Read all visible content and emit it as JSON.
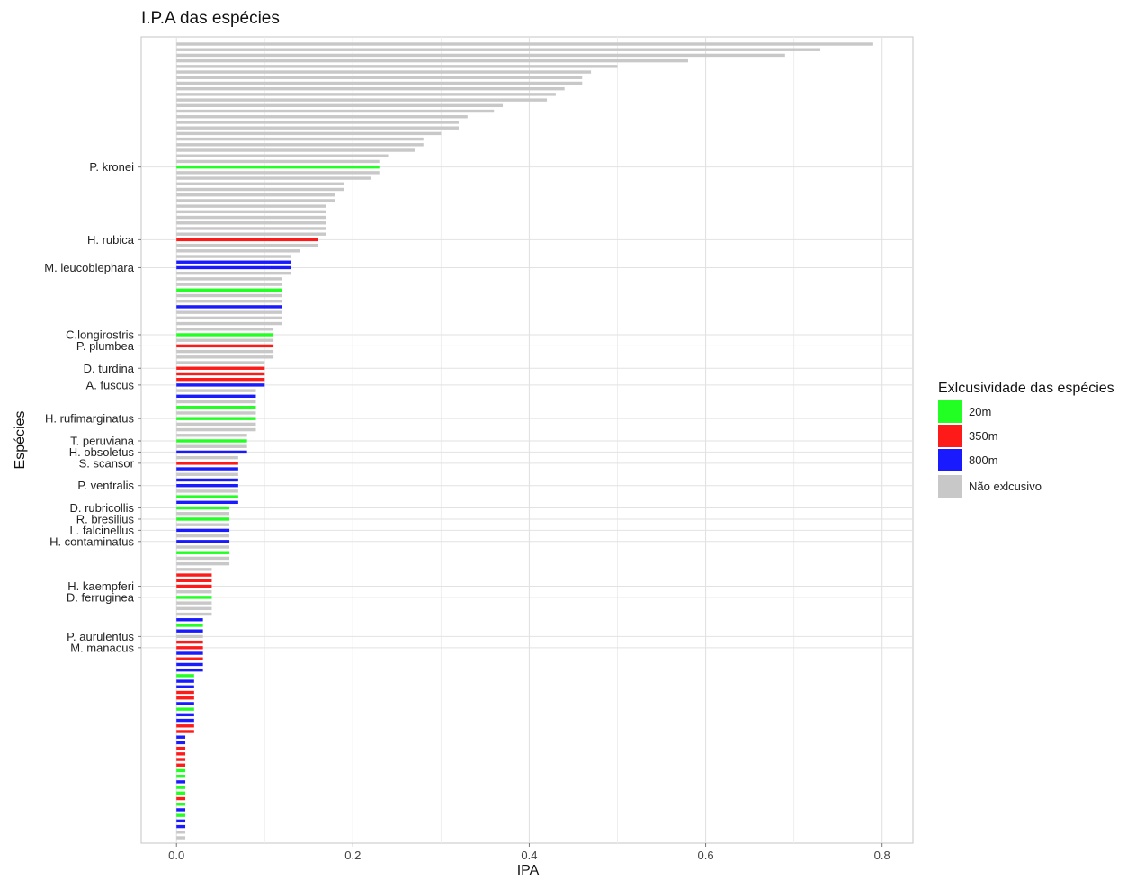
{
  "chart_data": {
    "type": "bar",
    "orientation": "horizontal",
    "title": "I.P.A das espécies",
    "xlabel": "IPA",
    "ylabel": "Espécies",
    "xlim": [
      -0.04,
      0.835
    ],
    "xticks": [
      0.0,
      0.2,
      0.4,
      0.6,
      0.8
    ],
    "xtick_labels": [
      "0.0",
      "0.2",
      "0.4",
      "0.6",
      "0.8"
    ],
    "grid": true,
    "legend": {
      "title": "Exlcusividade das espécies",
      "position": "right",
      "items": [
        {
          "key": "20m",
          "label": "20m",
          "color": "#22ff22"
        },
        {
          "key": "350m",
          "label": "350m",
          "color": "#ff1a1a"
        },
        {
          "key": "800m",
          "label": "800m",
          "color": "#1a1aff"
        },
        {
          "key": "nao",
          "label": "Não exlcusivo",
          "color": "#c8c8c8"
        }
      ]
    },
    "categories_ordered": "top-to-bottom, descending IPA",
    "values": [
      0.79,
      0.73,
      0.69,
      0.58,
      0.5,
      0.47,
      0.46,
      0.46,
      0.44,
      0.43,
      0.42,
      0.37,
      0.36,
      0.33,
      0.32,
      0.32,
      0.3,
      0.28,
      0.28,
      0.27,
      0.24,
      0.23,
      0.23,
      0.23,
      0.22,
      0.19,
      0.19,
      0.18,
      0.18,
      0.17,
      0.17,
      0.17,
      0.17,
      0.17,
      0.17,
      0.16,
      0.16,
      0.14,
      0.13,
      0.13,
      0.13,
      0.13,
      0.12,
      0.12,
      0.12,
      0.12,
      0.12,
      0.12,
      0.12,
      0.12,
      0.12,
      0.11,
      0.11,
      0.11,
      0.11,
      0.11,
      0.11,
      0.1,
      0.1,
      0.1,
      0.1,
      0.1,
      0.09,
      0.09,
      0.09,
      0.09,
      0.09,
      0.09,
      0.09,
      0.09,
      0.08,
      0.08,
      0.08,
      0.08,
      0.07,
      0.07,
      0.07,
      0.07,
      0.07,
      0.07,
      0.07,
      0.07,
      0.07,
      0.06,
      0.06,
      0.06,
      0.06,
      0.06,
      0.06,
      0.06,
      0.06,
      0.06,
      0.06,
      0.06,
      0.04,
      0.04,
      0.04,
      0.04,
      0.04,
      0.04,
      0.04,
      0.04,
      0.04,
      0.03,
      0.03,
      0.03,
      0.03,
      0.03,
      0.03,
      0.03,
      0.03,
      0.03,
      0.03,
      0.02,
      0.02,
      0.02,
      0.02,
      0.02,
      0.02,
      0.02,
      0.02,
      0.02,
      0.02,
      0.02,
      0.01,
      0.01,
      0.01,
      0.01,
      0.01,
      0.01,
      0.01,
      0.01,
      0.01,
      0.01,
      0.01,
      0.01,
      0.01,
      0.01,
      0.01,
      0.01,
      0.01,
      0.01,
      0.01
    ],
    "groups": [
      "nao",
      "nao",
      "nao",
      "nao",
      "nao",
      "nao",
      "nao",
      "nao",
      "nao",
      "nao",
      "nao",
      "nao",
      "nao",
      "nao",
      "nao",
      "nao",
      "nao",
      "nao",
      "nao",
      "nao",
      "nao",
      "nao",
      "20m",
      "nao",
      "nao",
      "nao",
      "nao",
      "nao",
      "nao",
      "nao",
      "nao",
      "nao",
      "nao",
      "nao",
      "nao",
      "350m",
      "nao",
      "nao",
      "nao",
      "800m",
      "800m",
      "nao",
      "nao",
      "nao",
      "20m",
      "nao",
      "nao",
      "800m",
      "nao",
      "nao",
      "nao",
      "nao",
      "20m",
      "nao",
      "350m",
      "nao",
      "nao",
      "nao",
      "350m",
      "350m",
      "350m",
      "800m",
      "nao",
      "800m",
      "nao",
      "20m",
      "nao",
      "20m",
      "nao",
      "nao",
      "nao",
      "20m",
      "nao",
      "800m",
      "nao",
      "350m",
      "800m",
      "nao",
      "800m",
      "800m",
      "nao",
      "20m",
      "800m",
      "20m",
      "nao",
      "20m",
      "nao",
      "800m",
      "nao",
      "800m",
      "nao",
      "20m",
      "nao",
      "nao",
      "nao",
      "350m",
      "350m",
      "350m",
      "nao",
      "20m",
      "nao",
      "nao",
      "nao",
      "800m",
      "20m",
      "800m",
      "nao",
      "350m",
      "350m",
      "800m",
      "350m",
      "800m",
      "800m",
      "20m",
      "800m",
      "800m",
      "350m",
      "350m",
      "800m",
      "20m",
      "800m",
      "800m",
      "350m",
      "350m",
      "800m",
      "800m",
      "350m",
      "350m",
      "350m",
      "350m",
      "20m",
      "20m",
      "800m",
      "20m",
      "20m",
      "350m",
      "20m",
      "800m",
      "20m",
      "800m",
      "800m"
    ],
    "labeled_species": [
      {
        "name": "P. kronei",
        "index": 22
      },
      {
        "name": "H. rubica",
        "index": 35
      },
      {
        "name": "M. leucoblephara",
        "index": 40
      },
      {
        "name": "C.longirostris",
        "index": 52
      },
      {
        "name": "P. plumbea",
        "index": 54
      },
      {
        "name": "D. turdina",
        "index": 58
      },
      {
        "name": "A. fuscus",
        "index": 61
      },
      {
        "name": "H. rufimarginatus",
        "index": 67
      },
      {
        "name": "T. peruviana",
        "index": 71
      },
      {
        "name": "H. obsoletus",
        "index": 73
      },
      {
        "name": "S. scansor",
        "index": 75
      },
      {
        "name": "P. ventralis",
        "index": 79
      },
      {
        "name": "D. rubricollis",
        "index": 83
      },
      {
        "name": "R. bresilius",
        "index": 85
      },
      {
        "name": "L. falcinellus",
        "index": 87
      },
      {
        "name": "H. contaminatus",
        "index": 89
      },
      {
        "name": "H. kaempferi",
        "index": 97
      },
      {
        "name": "D. ferruginea",
        "index": 99
      },
      {
        "name": "P. aurulentus",
        "index": 106
      },
      {
        "name": "M. manacus",
        "index": 108
      }
    ]
  }
}
